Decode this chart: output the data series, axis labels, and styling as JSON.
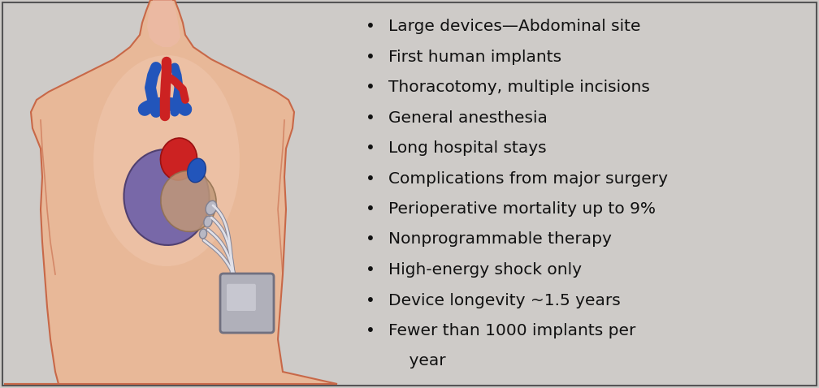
{
  "background_color": "#cecbc8",
  "border_color": "#555555",
  "bullet_points": [
    "Large devices—Abdominal site",
    "First human implants",
    "Thoracotomy, multiple incisions",
    "General anesthesia",
    "Long hospital stays",
    "Complications from major surgery",
    "Perioperative mortality up to 9%",
    "Nonprogrammable therapy",
    "High-energy shock only",
    "Device longevity ~1.5 years",
    "Fewer than 1000 implants per",
    "    year"
  ],
  "bullet_markers": [
    1,
    1,
    1,
    1,
    1,
    1,
    1,
    1,
    1,
    1,
    1,
    0
  ],
  "bullet_fontsize": 14.5,
  "text_color": "#111111",
  "skin_light": "#f0c8b0",
  "skin_mid": "#e8b898",
  "skin_outline": "#c86848",
  "neck_color": "#eebbaa",
  "chest_shadow": "#dba888",
  "heart_purple": "#7868a8",
  "heart_purple_dark": "#504070",
  "heart_red": "#cc2222",
  "heart_red_dark": "#991111",
  "heart_blue": "#2255bb",
  "heart_blue_dark": "#1a3d8f",
  "heart_tan": "#c09878",
  "heart_tan_dark": "#907050",
  "vessel_red": "#cc2222",
  "vessel_blue": "#2255bb",
  "device_color": "#b0b0ba",
  "device_outline": "#707080",
  "device_light": "#d8d8e0",
  "lead_light": "#e0e0e8",
  "lead_dark": "#888898",
  "patch_gray": "#b8b8c4",
  "patch_outline": "#808090"
}
